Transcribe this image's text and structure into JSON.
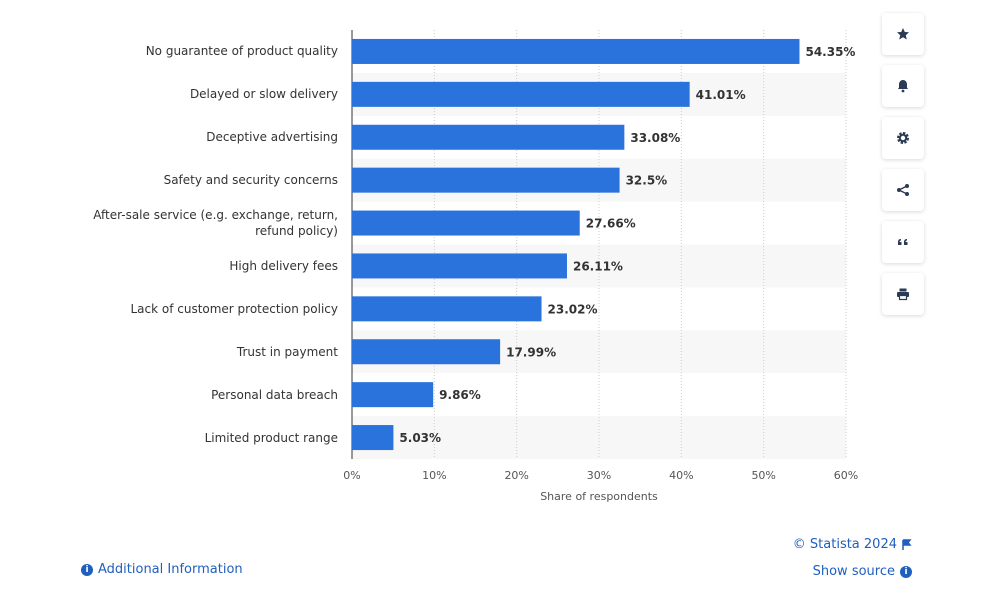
{
  "chart_data": {
    "type": "hbar",
    "categories": [
      "No guarantee of product quality",
      "Delayed or slow delivery",
      "Deceptive advertising",
      "Safety and security concerns",
      "After-sale service (e.g. exchange, return, refund policy)",
      "High delivery fees",
      "Lack of customer protection policy",
      "Trust in payment",
      "Personal data breach",
      "Limited product range"
    ],
    "values": [
      54.35,
      41.01,
      33.08,
      32.5,
      27.66,
      26.11,
      23.02,
      17.99,
      9.86,
      5.03
    ],
    "value_labels": [
      "54.35%",
      "41.01%",
      "33.08%",
      "32.5%",
      "27.66%",
      "26.11%",
      "23.02%",
      "17.99%",
      "9.86%",
      "5.03%"
    ],
    "color": "#2a72dc",
    "xlim": [
      0,
      60
    ],
    "xticks": [
      {
        "value": 0,
        "label": "0%"
      },
      {
        "value": 10,
        "label": "10%"
      },
      {
        "value": 20,
        "label": "20%"
      },
      {
        "value": 30,
        "label": "30%"
      },
      {
        "value": 40,
        "label": "40%"
      },
      {
        "value": 50,
        "label": "50%"
      },
      {
        "value": 60,
        "label": "60%"
      }
    ],
    "xlabel": "Share of respondents",
    "grid": true
  },
  "footer": {
    "copyright": "© Statista 2024",
    "show_source": "Show source",
    "additional_information": "Additional Information"
  }
}
